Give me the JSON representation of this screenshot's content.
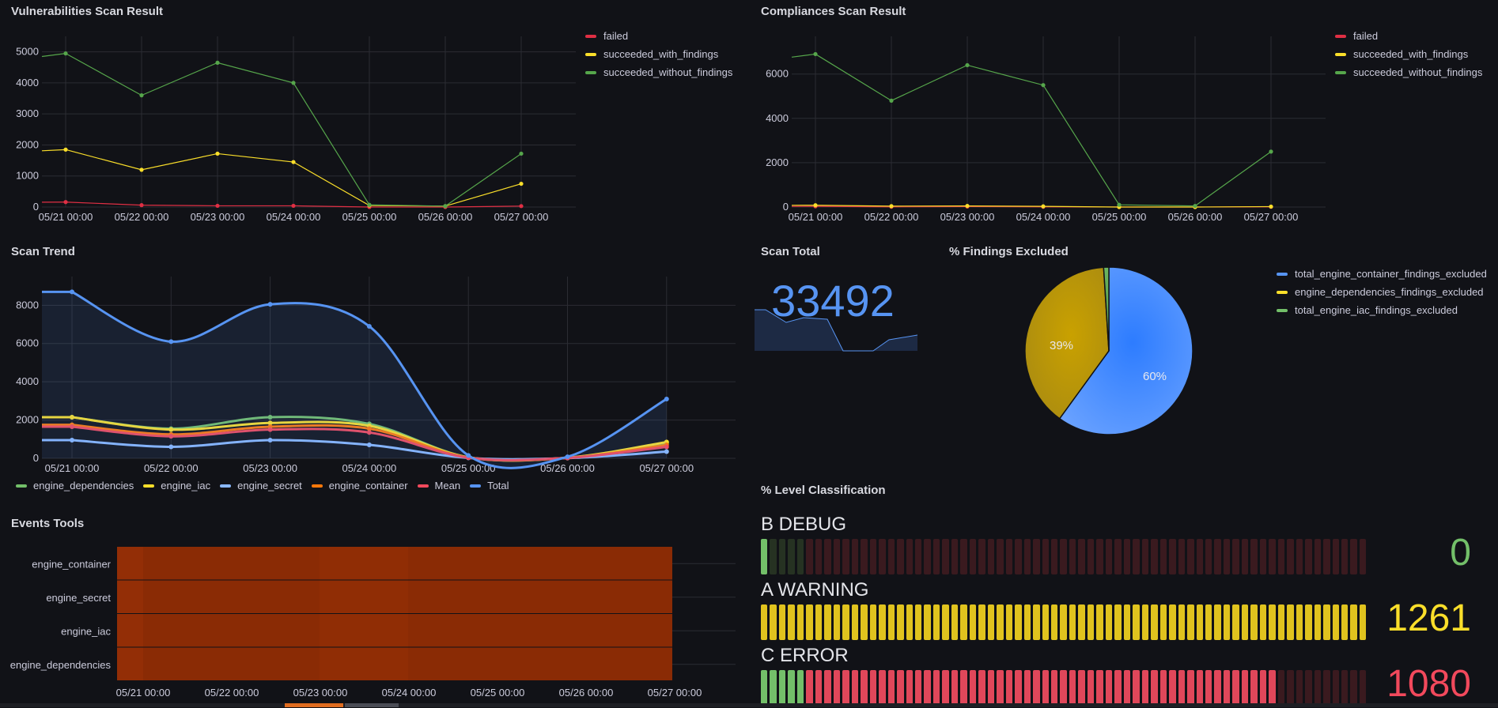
{
  "vuln": {
    "title": "Vulnerabilities Scan Result",
    "legend": [
      "failed",
      "succeeded_with_findings",
      "succeeded_without_findings"
    ],
    "colors": [
      "#e02f44",
      "#fade2a",
      "#56a64b"
    ]
  },
  "comp": {
    "title": "Compliances Scan Result",
    "legend": [
      "failed",
      "succeeded_with_findings",
      "succeeded_without_findings"
    ],
    "colors": [
      "#e02f44",
      "#fade2a",
      "#56a64b"
    ]
  },
  "trend": {
    "title": "Scan Trend",
    "legend": [
      "engine_dependencies",
      "engine_iac",
      "engine_secret",
      "engine_container",
      "Mean",
      "Total"
    ],
    "colors": [
      "#73bf69",
      "#fade2a",
      "#8ab8ff",
      "#ff780a",
      "#f2495c",
      "#5794f2"
    ]
  },
  "total": {
    "title": "Scan Total",
    "value": "33492",
    "color": "#5794f2"
  },
  "excluded": {
    "title": "% Findings Excluded",
    "legend": [
      "total_engine_container_findings_excluded",
      "engine_dependencies_findings_excluded",
      "total_engine_iac_findings_excluded"
    ],
    "colors": [
      "#5794f2",
      "#fade2a",
      "#73bf69"
    ],
    "labels": [
      "60%",
      "39%"
    ]
  },
  "events": {
    "title": "Events Tools",
    "rows": [
      "engine_container",
      "engine_secret",
      "engine_iac",
      "engine_dependencies"
    ]
  },
  "levels": {
    "title": "% Level Classification",
    "items": [
      {
        "label": "B DEBUG",
        "value": "0",
        "color": "#73bf69"
      },
      {
        "label": "A WARNING",
        "value": "1261",
        "color": "#fade2a"
      },
      {
        "label": "C ERROR",
        "value": "1080",
        "color": "#f2495c"
      }
    ]
  },
  "chart_data": [
    {
      "type": "line",
      "title": "Vulnerabilities Scan Result",
      "x": [
        "05/21 00:00",
        "05/22 00:00",
        "05/23 00:00",
        "05/24 00:00",
        "05/25 00:00",
        "05/26 00:00",
        "05/27 00:00"
      ],
      "ylim": [
        0,
        5500
      ],
      "yticks": [
        0,
        1000,
        2000,
        3000,
        4000,
        5000
      ],
      "series": [
        {
          "name": "failed",
          "values": [
            160,
            60,
            40,
            40,
            0,
            0,
            30
          ]
        },
        {
          "name": "succeeded_with_findings",
          "values": [
            1850,
            1200,
            1720,
            1450,
            50,
            30,
            750
          ]
        },
        {
          "name": "succeeded_without_findings",
          "values": [
            4950,
            3600,
            4650,
            4000,
            70,
            30,
            1720
          ]
        }
      ]
    },
    {
      "type": "line",
      "title": "Compliances Scan Result",
      "x": [
        "05/21 00:00",
        "05/22 00:00",
        "05/23 00:00",
        "05/24 00:00",
        "05/25 00:00",
        "05/26 00:00",
        "05/27 00:00"
      ],
      "ylim": [
        0,
        7700
      ],
      "yticks": [
        0,
        2000,
        4000,
        6000
      ],
      "series": [
        {
          "name": "failed",
          "values": [
            30,
            10,
            20,
            10,
            0,
            0,
            10
          ]
        },
        {
          "name": "succeeded_with_findings",
          "values": [
            80,
            40,
            50,
            30,
            0,
            0,
            20
          ]
        },
        {
          "name": "succeeded_without_findings",
          "values": [
            6900,
            4800,
            6400,
            5500,
            100,
            50,
            2500
          ]
        }
      ]
    },
    {
      "type": "line",
      "title": "Scan Trend",
      "x": [
        "05/21 00:00",
        "05/22 00:00",
        "05/23 00:00",
        "05/24 00:00",
        "05/25 00:00",
        "05/26 00:00",
        "05/27 00:00"
      ],
      "ylim": [
        0,
        9500
      ],
      "yticks": [
        0,
        2000,
        4000,
        6000,
        8000
      ],
      "series": [
        {
          "name": "engine_dependencies",
          "values": [
            2150,
            1550,
            2150,
            1800,
            50,
            30,
            800
          ]
        },
        {
          "name": "engine_iac",
          "values": [
            2150,
            1500,
            1850,
            1700,
            50,
            30,
            850
          ]
        },
        {
          "name": "engine_secret",
          "values": [
            950,
            600,
            950,
            700,
            20,
            10,
            350
          ]
        },
        {
          "name": "engine_container",
          "values": [
            1750,
            1250,
            1650,
            1550,
            40,
            20,
            700
          ]
        },
        {
          "name": "Mean",
          "values": [
            1650,
            1150,
            1500,
            1350,
            30,
            20,
            600
          ]
        },
        {
          "name": "Total",
          "values": [
            8700,
            6100,
            8050,
            6900,
            150,
            80,
            3100
          ]
        }
      ]
    },
    {
      "type": "pie",
      "title": "% Findings Excluded",
      "categories": [
        "total_engine_container_findings_excluded",
        "engine_dependencies_findings_excluded",
        "total_engine_iac_findings_excluded"
      ],
      "values": [
        60,
        39,
        1
      ]
    },
    {
      "type": "heatmap",
      "title": "Events Tools",
      "x": [
        "05/21 00:00",
        "05/22 00:00",
        "05/23 00:00",
        "05/24 00:00",
        "05/25 00:00",
        "05/26 00:00",
        "05/27 00:00"
      ],
      "categories": [
        "engine_container",
        "engine_secret",
        "engine_iac",
        "engine_dependencies"
      ]
    }
  ]
}
